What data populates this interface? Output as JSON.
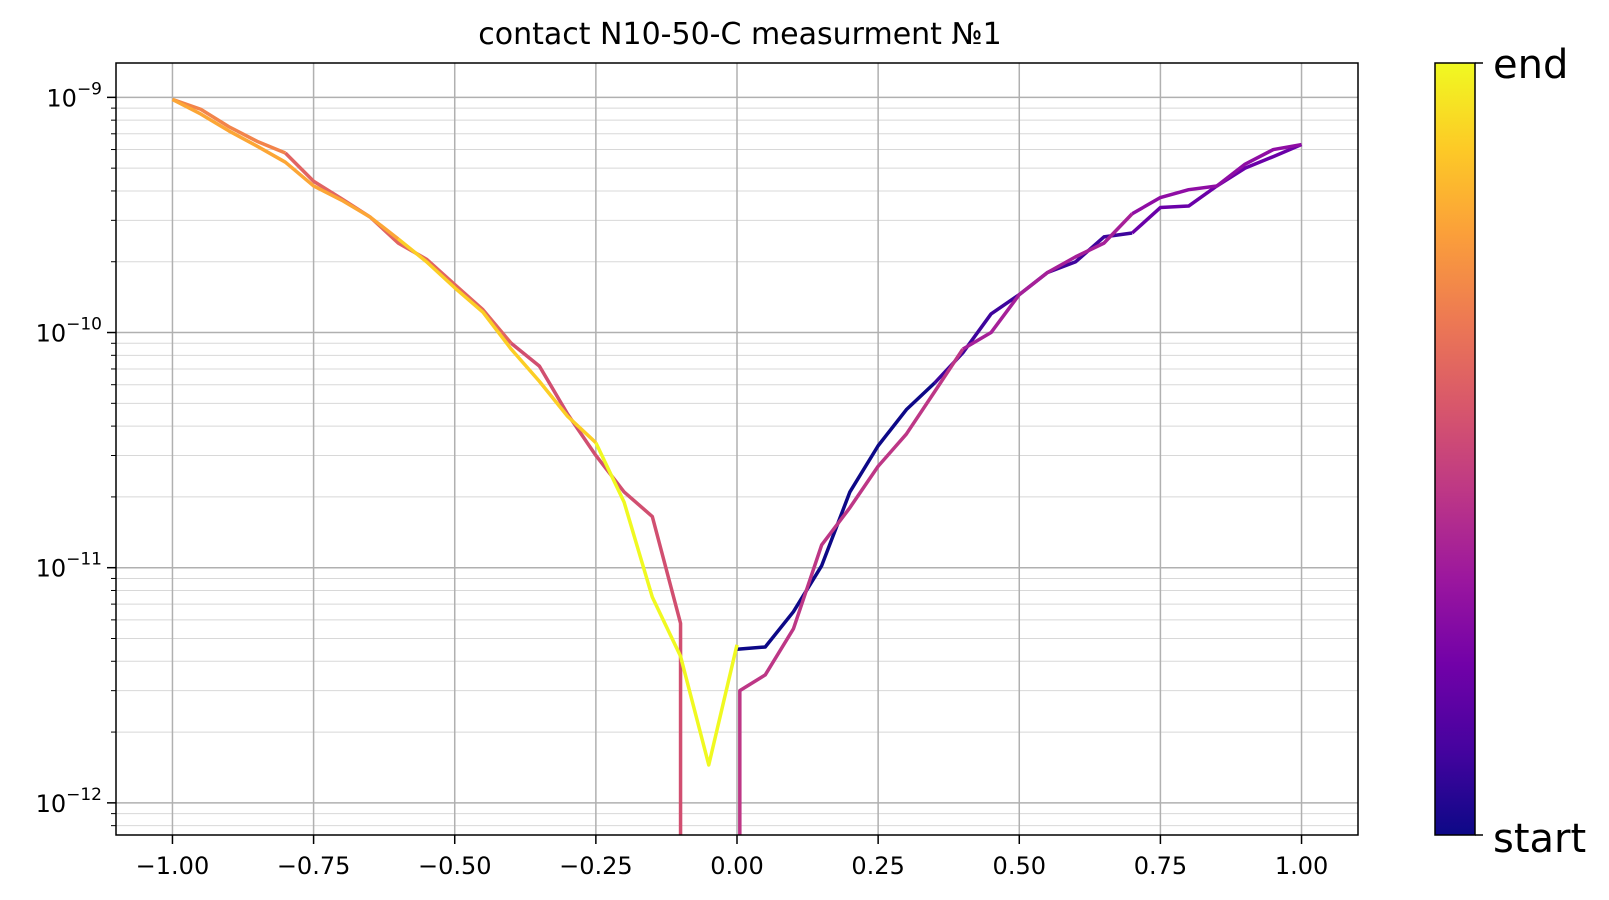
{
  "chart_data": {
    "type": "line",
    "title": "contact N10-50-C measurment №1",
    "xlabel": "",
    "ylabel": "",
    "xlim": [
      -1.1,
      1.1
    ],
    "ylim": [
      7.3e-13,
      1.4e-09
    ],
    "yscale": "log",
    "grid": true,
    "minor_grid": true,
    "legend": "none",
    "x_ticks": [
      -1.0,
      -0.75,
      -0.5,
      -0.25,
      0.0,
      0.25,
      0.5,
      0.75,
      1.0
    ],
    "x_tick_labels": [
      "−1.00",
      "−0.75",
      "−0.50",
      "−0.25",
      "0.00",
      "0.25",
      "0.50",
      "0.75",
      "1.00"
    ],
    "y_ticks": [
      1e-12,
      1e-11,
      1e-10,
      1e-09
    ],
    "y_tick_labels": [
      {
        "base": "10",
        "exp": "−12"
      },
      {
        "base": "10",
        "exp": "−11"
      },
      {
        "base": "10",
        "exp": "−10"
      },
      {
        "base": "10",
        "exp": "−9"
      }
    ],
    "colorbar": {
      "colormap": "plasma",
      "colors": [
        "#0d0887",
        "#46039f",
        "#7201a8",
        "#9c179e",
        "#bd3786",
        "#d8576b",
        "#ed7953",
        "#fb9f3a",
        "#fdca26",
        "#f0f921"
      ],
      "min_label": "start",
      "max_label": "end"
    },
    "series": [
      {
        "color": "#0d0887",
        "points": [
          [
            0.0,
            4.5e-12
          ],
          [
            0.05,
            4.6e-12
          ],
          [
            0.1,
            6.5e-12
          ],
          [
            0.15,
            1.02e-11
          ],
          [
            0.2,
            2.1e-11
          ],
          [
            0.25,
            3.3e-11
          ],
          [
            0.3,
            4.7e-11
          ],
          [
            0.35,
            6.1e-11
          ]
        ]
      },
      {
        "color": "#3e049c",
        "points": [
          [
            0.35,
            6.1e-11
          ],
          [
            0.4,
            8.2e-11
          ],
          [
            0.45,
            1.2e-10
          ],
          [
            0.5,
            1.45e-10
          ],
          [
            0.55,
            1.8e-10
          ],
          [
            0.6,
            2e-10
          ],
          [
            0.65,
            2.55e-10
          ],
          [
            0.7,
            2.65e-10
          ]
        ]
      },
      {
        "color": "#6a00a8",
        "points": [
          [
            0.7,
            2.65e-10
          ],
          [
            0.75,
            3.4e-10
          ],
          [
            0.8,
            3.45e-10
          ],
          [
            0.85,
            4.2e-10
          ],
          [
            0.9,
            5e-10
          ],
          [
            0.95,
            5.6e-10
          ],
          [
            1.0,
            6.3e-10
          ]
        ]
      },
      {
        "color": "#8f0da4",
        "points": [
          [
            1.0,
            6.3e-10
          ],
          [
            0.95,
            6e-10
          ],
          [
            0.9,
            5.2e-10
          ],
          [
            0.85,
            4.2e-10
          ],
          [
            0.8,
            4.05e-10
          ],
          [
            0.75,
            3.75e-10
          ],
          [
            0.7,
            3.2e-10
          ]
        ]
      },
      {
        "color": "#a62098",
        "points": [
          [
            0.7,
            3.2e-10
          ],
          [
            0.65,
            2.4e-10
          ],
          [
            0.6,
            2.1e-10
          ],
          [
            0.55,
            1.8e-10
          ],
          [
            0.5,
            1.45e-10
          ],
          [
            0.45,
            1e-10
          ],
          [
            0.4,
            8.5e-11
          ]
        ]
      },
      {
        "color": "#bd3786",
        "points": [
          [
            0.4,
            8.5e-11
          ],
          [
            0.35,
            5.6e-11
          ],
          [
            0.3,
            3.7e-11
          ],
          [
            0.25,
            2.7e-11
          ],
          [
            0.2,
            1.8e-11
          ],
          [
            0.15,
            1.25e-11
          ],
          [
            0.1,
            5.5e-12
          ],
          [
            0.05,
            3.5e-12
          ],
          [
            0.005,
            3e-12
          ],
          [
            0.005,
            7.3e-13
          ]
        ]
      },
      {
        "color": "#d14f70",
        "points": [
          [
            -0.1,
            7.3e-13
          ],
          [
            -0.1,
            5.8e-12
          ],
          [
            -0.15,
            1.65e-11
          ],
          [
            -0.2,
            2.1e-11
          ],
          [
            -0.25,
            3e-11
          ],
          [
            -0.3,
            4.5e-11
          ],
          [
            -0.35,
            7.2e-11
          ],
          [
            -0.4,
            9e-11
          ]
        ]
      },
      {
        "color": "#e16462",
        "points": [
          [
            -0.4,
            9e-11
          ],
          [
            -0.45,
            1.25e-10
          ],
          [
            -0.5,
            1.6e-10
          ],
          [
            -0.55,
            2.05e-10
          ],
          [
            -0.6,
            2.4e-10
          ],
          [
            -0.65,
            3.1e-10
          ],
          [
            -0.7,
            3.7e-10
          ],
          [
            -0.75,
            4.4e-10
          ],
          [
            -0.8,
            5.8e-10
          ]
        ]
      },
      {
        "color": "#f2844b",
        "points": [
          [
            -0.8,
            5.8e-10
          ],
          [
            -0.85,
            6.5e-10
          ],
          [
            -0.9,
            7.5e-10
          ],
          [
            -0.95,
            8.9e-10
          ],
          [
            -1.0,
            9.8e-10
          ]
        ]
      },
      {
        "color": "#fca636",
        "points": [
          [
            -1.0,
            9.8e-10
          ],
          [
            -0.95,
            8.5e-10
          ],
          [
            -0.9,
            7.2e-10
          ],
          [
            -0.85,
            6.2e-10
          ],
          [
            -0.8,
            5.3e-10
          ],
          [
            -0.75,
            4.2e-10
          ],
          [
            -0.7,
            3.65e-10
          ],
          [
            -0.65,
            3.1e-10
          ],
          [
            -0.6,
            2.5e-10
          ]
        ]
      },
      {
        "color": "#fcce25",
        "points": [
          [
            -0.6,
            2.5e-10
          ],
          [
            -0.55,
            2e-10
          ],
          [
            -0.5,
            1.55e-10
          ],
          [
            -0.45,
            1.22e-10
          ],
          [
            -0.4,
            8.5e-11
          ],
          [
            -0.35,
            6.2e-11
          ],
          [
            -0.3,
            4.4e-11
          ],
          [
            -0.25,
            3.4e-11
          ]
        ]
      },
      {
        "color": "#f0f921",
        "points": [
          [
            -0.25,
            3.4e-11
          ],
          [
            -0.2,
            1.9e-11
          ],
          [
            -0.15,
            7.5e-12
          ],
          [
            -0.1,
            4.2e-12
          ],
          [
            -0.05,
            1.45e-12
          ],
          [
            0.0,
            4.7e-12
          ]
        ]
      }
    ]
  }
}
